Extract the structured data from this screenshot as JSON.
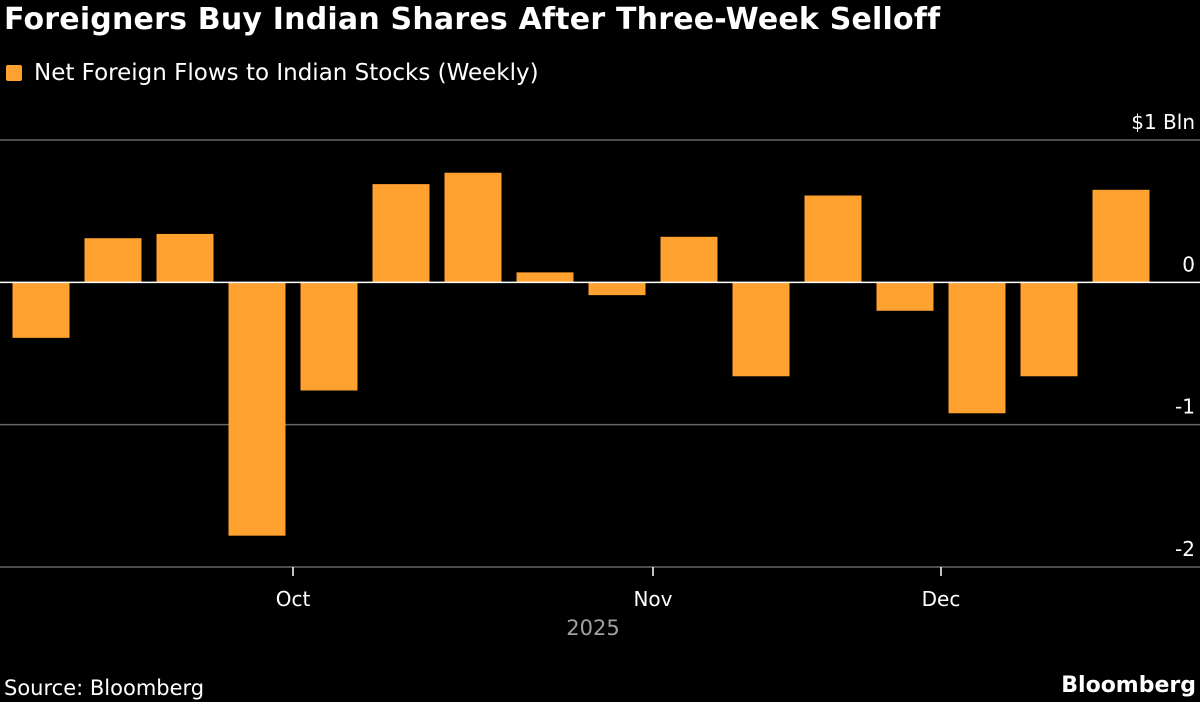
{
  "colors": {
    "background": "#000000",
    "bar": "#ffa12f",
    "gridline": "#666666",
    "zeroline": "#ffffff",
    "text": "#ffffff",
    "muted_text": "#a0a0a0"
  },
  "chart_data": {
    "type": "bar",
    "title": "Foreigners Buy Indian Shares After Three-Week Selloff",
    "series": [
      {
        "name": "Net Foreign Flows to Indian Stocks (Weekly)",
        "values": [
          -0.39,
          0.31,
          0.34,
          -1.78,
          -0.76,
          0.69,
          0.77,
          0.07,
          -0.09,
          0.32,
          -0.66,
          0.61,
          -0.2,
          -0.92,
          -0.66,
          0.65
        ]
      }
    ],
    "ylim": [
      -2.0,
      1.0
    ],
    "yticks": [
      {
        "value": 1,
        "label": "$1 Bln"
      },
      {
        "value": 0,
        "label": "0"
      },
      {
        "value": -1,
        "label": "-1"
      },
      {
        "value": -2,
        "label": "-2"
      }
    ],
    "xticks": [
      {
        "position": 3.5,
        "label": "Oct"
      },
      {
        "position": 8.5,
        "label": "Nov"
      },
      {
        "position": 12.5,
        "label": "Dec"
      }
    ],
    "x_year_label": "2025",
    "xlabel": "",
    "ylabel": "",
    "legend_position": "top-left"
  },
  "footer": {
    "source": "Source: Bloomberg",
    "brand": "Bloomberg"
  }
}
